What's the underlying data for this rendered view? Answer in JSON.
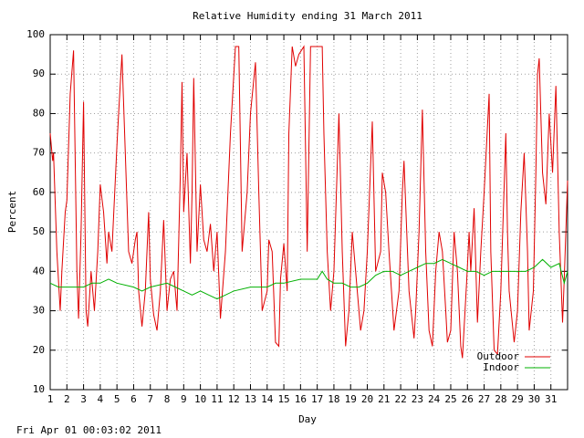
{
  "chart_data": {
    "type": "line",
    "title": "Relative Humidity ending 31 March 2011",
    "x_label": "Day",
    "y_label": "Percent",
    "footer": "Fri Apr 01 00:03:02 2011",
    "xlim": [
      1,
      32
    ],
    "ylim": [
      10,
      100
    ],
    "xticks": [
      1,
      2,
      3,
      4,
      5,
      6,
      7,
      8,
      9,
      10,
      11,
      12,
      13,
      14,
      15,
      16,
      17,
      18,
      19,
      20,
      21,
      22,
      23,
      24,
      25,
      26,
      27,
      28,
      29,
      30,
      31
    ],
    "yticks": [
      10,
      20,
      30,
      40,
      50,
      60,
      70,
      80,
      90,
      100
    ],
    "grid": true,
    "legend": "bottom-right",
    "series": [
      {
        "name": "Outdoor",
        "color": "#e00000",
        "x": [
          1,
          1.15,
          1.2,
          1.4,
          1.6,
          1.7,
          1.9,
          2.0,
          2.2,
          2.4,
          2.6,
          2.7,
          2.85,
          3.0,
          3.15,
          3.25,
          3.45,
          3.65,
          3.85,
          4.0,
          4.2,
          4.4,
          4.5,
          4.7,
          5.0,
          5.1,
          5.3,
          5.5,
          5.7,
          5.9,
          6.1,
          6.2,
          6.3,
          6.5,
          6.7,
          6.9,
          7.0,
          7.2,
          7.4,
          7.6,
          7.8,
          8.0,
          8.2,
          8.4,
          8.6,
          8.8,
          8.9,
          9.0,
          9.2,
          9.4,
          9.5,
          9.6,
          9.8,
          10.0,
          10.2,
          10.4,
          10.6,
          10.8,
          11.0,
          11.2,
          11.5,
          11.8,
          12.1,
          12.3,
          12.5,
          12.8,
          13.0,
          13.3,
          13.5,
          13.7,
          14.0,
          14.1,
          14.3,
          14.5,
          14.7,
          14.8,
          15.0,
          15.2,
          15.3,
          15.5,
          15.7,
          15.9,
          16.2,
          16.4,
          16.6,
          16.9,
          17.3,
          17.4,
          17.6,
          17.8,
          18.0,
          18.3,
          18.5,
          18.7,
          18.9,
          19.1,
          19.3,
          19.6,
          19.8,
          20.0,
          20.3,
          20.5,
          20.8,
          20.9,
          21.1,
          21.3,
          21.6,
          21.9,
          22.1,
          22.2,
          22.5,
          22.8,
          22.9,
          23.1,
          23.3,
          23.5,
          23.7,
          23.9,
          24.1,
          24.3,
          24.5,
          24.7,
          24.8,
          25.0,
          25.2,
          25.4,
          25.6,
          25.7,
          25.96,
          26.1,
          26.2,
          26.4,
          26.6,
          26.8,
          27.0,
          27.3,
          27.4,
          27.6,
          27.8,
          28.0,
          28.3,
          28.4,
          28.5,
          28.8,
          29.0,
          29.2,
          29.4,
          29.6,
          29.7,
          29.95,
          30.1,
          30.2,
          30.3,
          30.5,
          30.7,
          30.9,
          31.1,
          31.3,
          31.5,
          31.7,
          31.8,
          32.0
        ],
        "values": [
          75,
          68,
          70,
          45,
          30,
          40,
          55,
          58,
          85,
          96,
          40,
          28,
          50,
          83,
          30,
          26,
          40,
          30,
          45,
          62,
          55,
          42,
          50,
          45,
          72,
          80,
          95,
          70,
          45,
          42,
          48,
          50,
          35,
          26,
          35,
          55,
          38,
          29,
          25,
          35,
          53,
          30,
          38,
          40,
          30,
          65,
          88,
          55,
          70,
          42,
          60,
          89,
          45,
          62,
          48,
          45,
          52,
          40,
          50,
          28,
          45,
          75,
          97,
          97,
          45,
          60,
          80,
          93,
          60,
          30,
          35,
          48,
          45,
          22,
          21,
          38,
          47,
          35,
          75,
          97,
          92,
          95,
          97,
          45,
          97,
          97,
          97,
          75,
          45,
          30,
          40,
          80,
          45,
          21,
          30,
          50,
          40,
          25,
          30,
          45,
          78,
          40,
          45,
          65,
          60,
          45,
          25,
          35,
          60,
          68,
          35,
          23,
          30,
          50,
          81,
          45,
          25,
          21,
          40,
          50,
          45,
          30,
          22,
          25,
          50,
          40,
          21,
          18,
          38,
          50,
          40,
          56,
          27,
          45,
          60,
          85,
          45,
          20,
          19,
          35,
          75,
          50,
          35,
          22,
          30,
          55,
          70,
          45,
          25,
          35,
          65,
          90,
          94,
          65,
          57,
          80,
          65,
          87,
          50,
          27,
          38,
          63
        ]
      },
      {
        "name": "Indoor",
        "color": "#00b000",
        "x": [
          1,
          1.5,
          2,
          3,
          3.5,
          4,
          4.5,
          5,
          6,
          6.5,
          7,
          8,
          8.5,
          9,
          9.5,
          10,
          10.5,
          11,
          11.5,
          12,
          13,
          14,
          14.5,
          15,
          16,
          17,
          17.3,
          17.6,
          18,
          18.5,
          19,
          19.5,
          20,
          20.5,
          21,
          21.5,
          22,
          22.5,
          23,
          23.5,
          24,
          24.5,
          25,
          25.5,
          26,
          26.5,
          27,
          27.5,
          28,
          28.5,
          29,
          29.5,
          30,
          30.5,
          31,
          31.5,
          31.8,
          32
        ],
        "values": [
          37,
          36,
          36,
          36,
          37,
          37,
          38,
          37,
          36,
          35,
          36,
          37,
          36,
          35,
          34,
          35,
          34,
          33,
          34,
          35,
          36,
          36,
          37,
          37,
          38,
          38,
          40,
          38,
          37,
          37,
          36,
          36,
          37,
          39,
          40,
          40,
          39,
          40,
          41,
          42,
          42,
          43,
          42,
          41,
          40,
          40,
          39,
          40,
          40,
          40,
          40,
          40,
          41,
          43,
          41,
          42,
          37,
          40
        ]
      }
    ]
  }
}
